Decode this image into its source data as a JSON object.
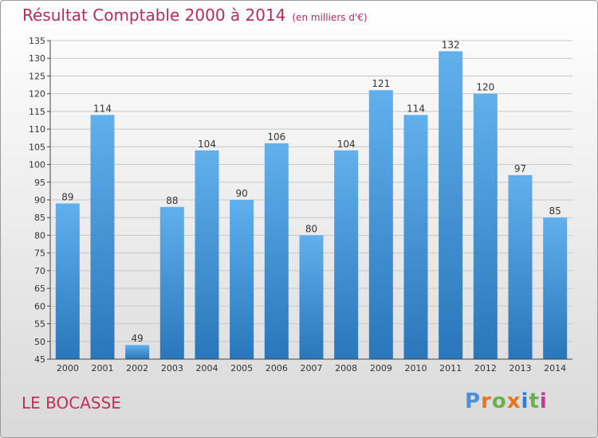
{
  "header": {
    "title": "Résultat Comptable 2000 à 2014",
    "subtitle": "(en milliers d'€)"
  },
  "footer": {
    "commune": "LE BOCASSE",
    "logo_letters": [
      "P",
      "r",
      "o",
      "x",
      "i",
      "t",
      "i"
    ],
    "logo_colors": [
      "#4a90d9",
      "#e8741c",
      "#6ab04c",
      "#e8741c",
      "#2c7fd1",
      "#6ab04c",
      "#c23b8f"
    ]
  },
  "colors": {
    "bar": "#3e95dd",
    "bar_light": "#61b0ec",
    "bar_dark": "#2a76bb",
    "title": "#b52b5a",
    "grid": "#c8c8c8"
  },
  "chart_data": {
    "type": "bar",
    "categories": [
      "2000",
      "2001",
      "2002",
      "2003",
      "2004",
      "2005",
      "2006",
      "2007",
      "2008",
      "2009",
      "2010",
      "2011",
      "2012",
      "2013",
      "2014"
    ],
    "values": [
      89,
      114,
      49,
      88,
      104,
      90,
      106,
      80,
      104,
      121,
      114,
      132,
      120,
      97,
      85
    ],
    "ylim": [
      45,
      135
    ],
    "ytick_step": 5,
    "grid": true
  }
}
